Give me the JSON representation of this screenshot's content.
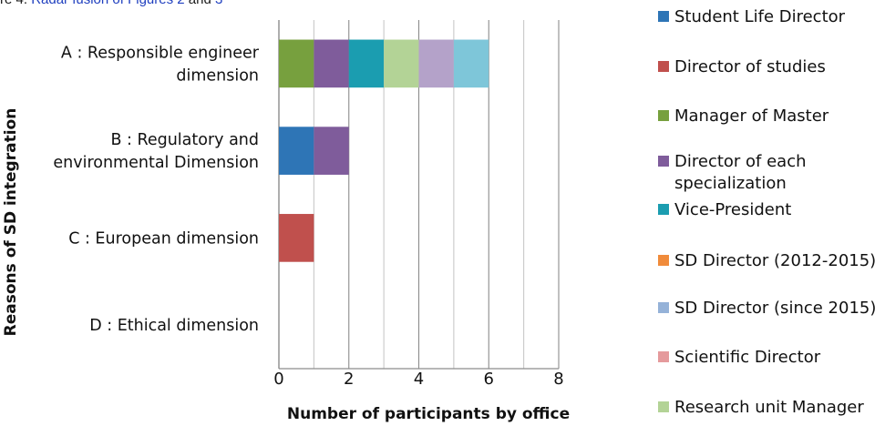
{
  "caption": {
    "prefix": "re 4.",
    "link1": "Radar fusion of",
    "link2": "Figures 2",
    "and": "and",
    "link3": "3"
  },
  "chart_data": {
    "type": "bar",
    "orientation": "horizontal",
    "stacked": true,
    "categories": [
      [
        "A : Responsible engineer",
        "dimension"
      ],
      [
        "B : Regulatory and",
        "environmental Dimension"
      ],
      [
        "C : European dimension"
      ],
      [
        "D : Ethical dimension"
      ]
    ],
    "series": [
      {
        "name": "Student Life Director",
        "color": "#2e75b6",
        "values": [
          0,
          1,
          0,
          0
        ]
      },
      {
        "name": "Director of studies",
        "color": "#c0504d",
        "values": [
          0,
          0,
          1,
          0
        ]
      },
      {
        "name": "Manager of Master",
        "color": "#77a03e",
        "values": [
          1,
          0,
          0,
          0
        ]
      },
      {
        "name": [
          "Director of each",
          "specialization"
        ],
        "color": "#7f5c9b",
        "values": [
          1,
          1,
          0,
          0
        ]
      },
      {
        "name": "Vice-President",
        "color": "#1b9db0",
        "values": [
          1,
          0,
          0,
          0
        ]
      },
      {
        "name": "SD Director (2012-2015)",
        "color": "#f08b3b",
        "values": [
          0,
          0,
          0,
          0
        ]
      },
      {
        "name": "SD Director (since 2015)",
        "color": "#95b2d8",
        "values": [
          0,
          0,
          0,
          0
        ]
      },
      {
        "name": "Scientific Director",
        "color": "#e59a9c",
        "values": [
          0,
          0,
          0,
          0
        ]
      },
      {
        "name": "Research unit Manager",
        "color": "#b3d396",
        "values": [
          1,
          0,
          0,
          0
        ]
      },
      {
        "name": "",
        "color": "#b4a2c9",
        "values": [
          1,
          0,
          0,
          0
        ]
      },
      {
        "name": "",
        "color": "#7ec6d9",
        "values": [
          1,
          0,
          0,
          0
        ]
      }
    ],
    "xlabel": "Number of participants by office",
    "ylabel": "Reasons of SD integration",
    "xlim": [
      0,
      8
    ],
    "xticks": [
      0,
      2,
      4,
      6,
      8
    ],
    "grid": true,
    "legend_placement": "right"
  }
}
